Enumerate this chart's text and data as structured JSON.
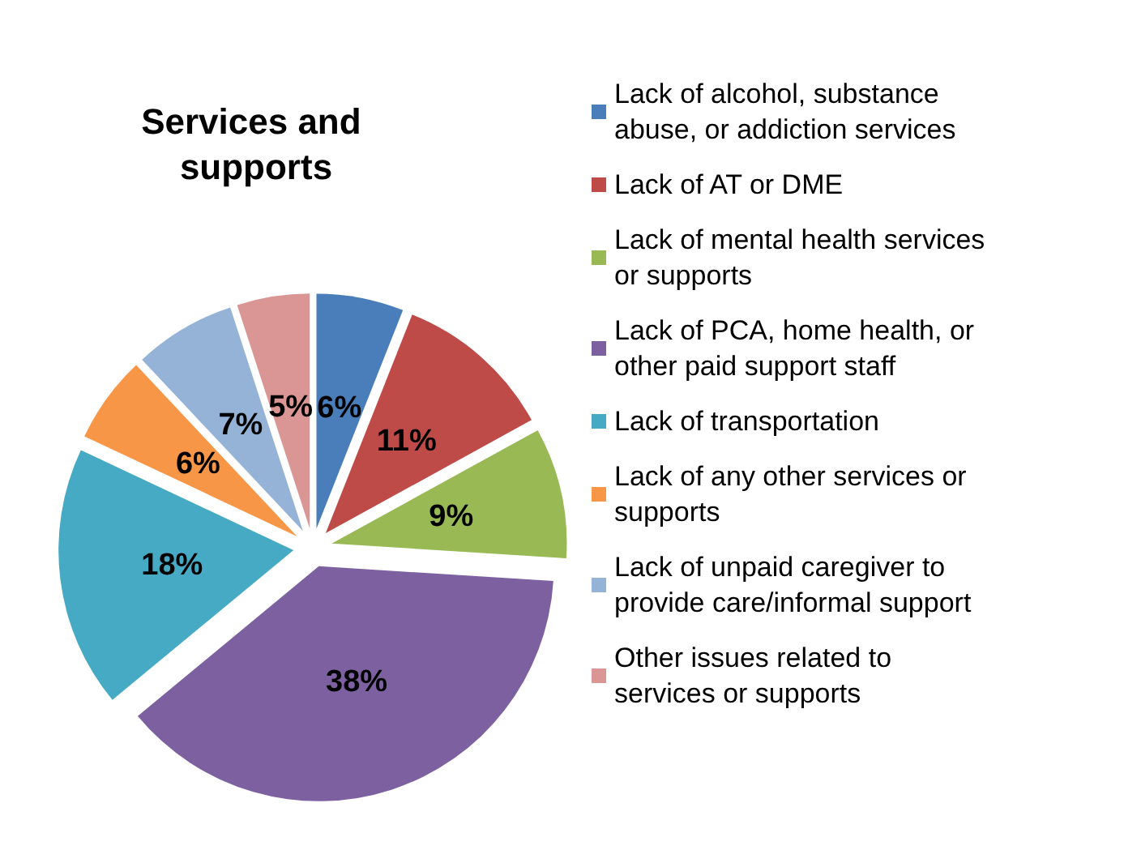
{
  "chart_data": {
    "type": "pie",
    "title": "Services and supports",
    "categories": [
      "Lack of alcohol, substance abuse, or addiction services",
      "Lack of AT or DME",
      "Lack of mental health services or supports",
      "Lack of PCA, home health, or other paid support staff",
      "Lack of transportation",
      "Lack of any other services or supports",
      "Lack of unpaid caregiver to provide care/informal support",
      "Other issues related to services or supports"
    ],
    "values": [
      6,
      11,
      9,
      38,
      18,
      6,
      7,
      5
    ],
    "colors": [
      "#4a7ebb",
      "#be4b48",
      "#98b954",
      "#7d60a0",
      "#46aac5",
      "#f79646",
      "#95b3d7",
      "#d99694"
    ],
    "value_labels": [
      "6%",
      "11%",
      "9%",
      "38%",
      "18%",
      "6%",
      "7%",
      "5%"
    ],
    "legend": "right"
  }
}
